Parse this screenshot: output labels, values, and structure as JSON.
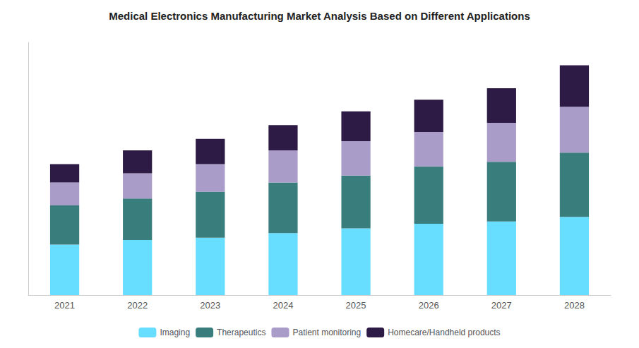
{
  "chart_data": {
    "type": "bar",
    "title": "Medical Electronics Manufacturing Market Analysis Based on Different Applications",
    "categories": [
      "2021",
      "2022",
      "2023",
      "2024",
      "2025",
      "2026",
      "2027",
      "2028"
    ],
    "series": [
      {
        "name": "Imaging",
        "color": "#67DEFF",
        "values": [
          22,
          24,
          25,
          27,
          29,
          31,
          32,
          34
        ]
      },
      {
        "name": "Therapeutics",
        "color": "#3A7D7D",
        "values": [
          17,
          18,
          20,
          22,
          23,
          25,
          26,
          28
        ]
      },
      {
        "name": "Patient monitoring",
        "color": "#A99CC8",
        "values": [
          10,
          11,
          12,
          14,
          15,
          15,
          17,
          20
        ]
      },
      {
        "name": "Homecare/Handheld products",
        "color": "#2D1B45",
        "values": [
          8,
          10,
          11,
          11,
          13,
          14,
          15,
          18
        ]
      }
    ],
    "stacked": true,
    "ylim": [
      0,
      110
    ],
    "yticks": [],
    "tick_labels": "x",
    "grid": false,
    "legend": "bottom"
  }
}
